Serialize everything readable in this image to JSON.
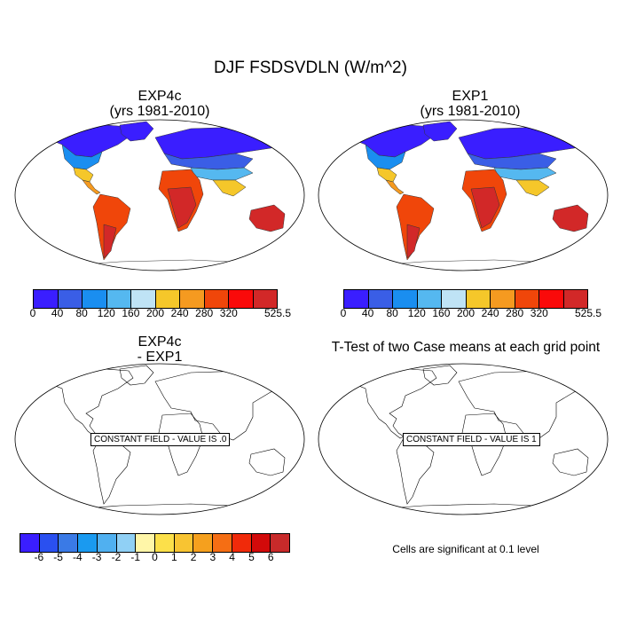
{
  "figure": {
    "title": "DJF FSDSVDLN (W/m^2)"
  },
  "panels": {
    "top_left": {
      "title_line1": "EXP4c",
      "title_line2": "(yrs 1981-2010)"
    },
    "top_right": {
      "title_line1": "EXP1",
      "title_line2": "(yrs 1981-2010)"
    },
    "bottom_left": {
      "title_line1": "EXP4c",
      "title_line2": "- EXP1",
      "constant_field_text": "CONSTANT FIELD - VALUE IS .0"
    },
    "bottom_right": {
      "title": "T-Test of two Case means at each grid point",
      "constant_field_text": "CONSTANT FIELD - VALUE IS 1",
      "note": "Cells are significant at 0.1 level"
    }
  },
  "colorbars": {
    "absolute": {
      "labels": [
        "0",
        "40",
        "80",
        "120",
        "160",
        "200",
        "240",
        "280",
        "320",
        "525.5"
      ],
      "colors": [
        "#3a1eff",
        "#3a5ee6",
        "#1a8ef0",
        "#55b8f0",
        "#bfe3f5",
        "#f5c72a",
        "#f59a20",
        "#f0460a",
        "#fa0a0a",
        "#d22828"
      ]
    },
    "difference": {
      "labels": [
        "-6",
        "-5",
        "-4",
        "-3",
        "-2",
        "-1",
        "0",
        "1",
        "2",
        "3",
        "4",
        "5",
        "6"
      ],
      "colors": [
        "#3a1eff",
        "#2a50f0",
        "#3a7ae6",
        "#1a9af0",
        "#50b0f0",
        "#90d0f5",
        "#fff6a8",
        "#fce04a",
        "#f8c432",
        "#f5a01e",
        "#f56e14",
        "#f02a0a",
        "#d20a0a",
        "#c82a2a"
      ]
    }
  }
}
